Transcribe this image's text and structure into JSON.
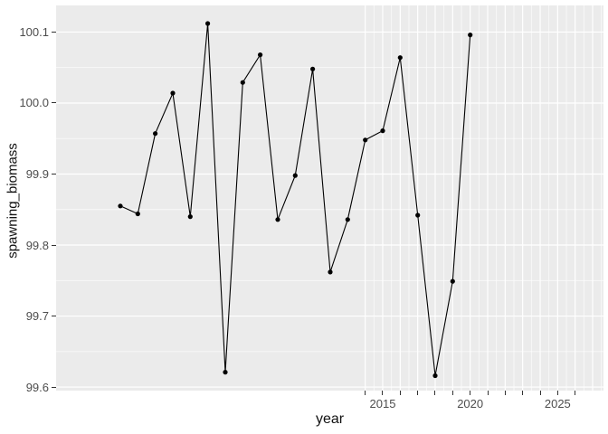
{
  "chart_data": {
    "type": "line",
    "title": "",
    "xlabel": "year",
    "ylabel": "spawning_biomass",
    "x": [
      2000,
      2001,
      2002,
      2003,
      2004,
      2005,
      2006,
      2007,
      2008,
      2009,
      2010,
      2011,
      2012,
      2013,
      2014,
      2015,
      2016,
      2017,
      2018,
      2019,
      2020
    ],
    "y": [
      99.855,
      99.844,
      99.957,
      100.014,
      99.84,
      100.112,
      99.621,
      100.029,
      100.068,
      99.836,
      99.898,
      100.048,
      99.762,
      99.836,
      99.948,
      99.961,
      100.064,
      99.842,
      99.616,
      99.749,
      100.096
    ],
    "xlim": [
      1996.33,
      2027.62
    ],
    "ylim": [
      99.595,
      100.1375
    ],
    "x_major_gridlines": [
      2014,
      2015,
      2016,
      2017,
      2018,
      2019,
      2020,
      2021,
      2022,
      2023,
      2024,
      2025,
      2026,
      2027
    ],
    "x_minor_gridlines": [
      2014.5,
      2015.5,
      2016.5,
      2017.5,
      2018.5,
      2019.5,
      2020.5,
      2021.5,
      2022.5,
      2023.5,
      2024.5,
      2025.5,
      2026.5,
      2027.5
    ],
    "y_major_gridlines": [
      99.6,
      99.7,
      99.8,
      99.9,
      100.0,
      100.1
    ],
    "y_minor_gridlines": [
      99.65,
      99.75,
      99.85,
      99.95,
      100.05
    ],
    "x_axis_tick_years": [
      2014,
      2015,
      2016,
      2017,
      2018,
      2019,
      2020,
      2021,
      2022,
      2023,
      2024,
      2025,
      2026
    ],
    "x_tick_labels": [
      {
        "value": 2015,
        "label": "2015"
      },
      {
        "value": 2020,
        "label": "2020"
      },
      {
        "value": 2025,
        "label": "2025"
      }
    ],
    "y_tick_labels": [
      {
        "value": 100.1,
        "label": "100.1"
      },
      {
        "value": 100.0,
        "label": "100.0"
      },
      {
        "value": 99.9,
        "label": "99.9"
      },
      {
        "value": 99.8,
        "label": "99.8"
      },
      {
        "value": 99.7,
        "label": "99.7"
      },
      {
        "value": 99.6,
        "label": "99.6"
      }
    ],
    "grid": true,
    "legend": "none",
    "colors": {
      "panel_background": "#EBEBEB",
      "grid_major": "#FFFFFF",
      "grid_minor": "#FFFFFF",
      "line": "#000000",
      "point": "#000000",
      "tick_text": "#4D4D4D",
      "axis_title_text": "#111111",
      "tick_mark": "#333333",
      "figure_background": "#FFFFFF"
    }
  }
}
